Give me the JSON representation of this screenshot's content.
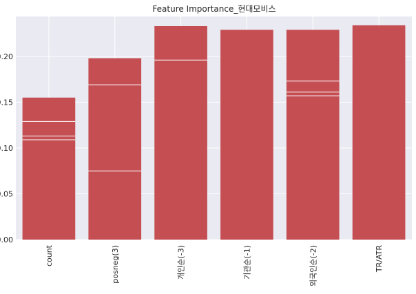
{
  "chart_data": {
    "type": "bar",
    "title": "Feature Importance_현대모비스",
    "xlabel": "",
    "ylabel": "",
    "categories": [
      "count",
      "posneg(3)",
      "개인순(-3)",
      "기관순(-1)",
      "외국인순(-2)",
      "TR/ATR"
    ],
    "values": [
      0.155,
      0.198,
      0.233,
      0.229,
      0.229,
      0.234
    ],
    "inner_lines": [
      [
        0.129,
        0.113,
        0.109
      ],
      [
        0.169,
        0.075
      ],
      [
        0.196
      ],
      [],
      [
        0.173,
        0.161,
        0.157
      ],
      []
    ],
    "ylim": [
      0,
      0.2435
    ],
    "yticks": [
      0.0,
      0.05,
      0.1,
      0.15,
      0.2
    ],
    "ytick_labels": [
      "0.00",
      "0.05",
      "0.10",
      "0.15",
      "0.20"
    ],
    "grid": true,
    "colors": {
      "bar": "#c44e52",
      "background": "#eaeaf2",
      "grid": "#ffffff"
    }
  }
}
